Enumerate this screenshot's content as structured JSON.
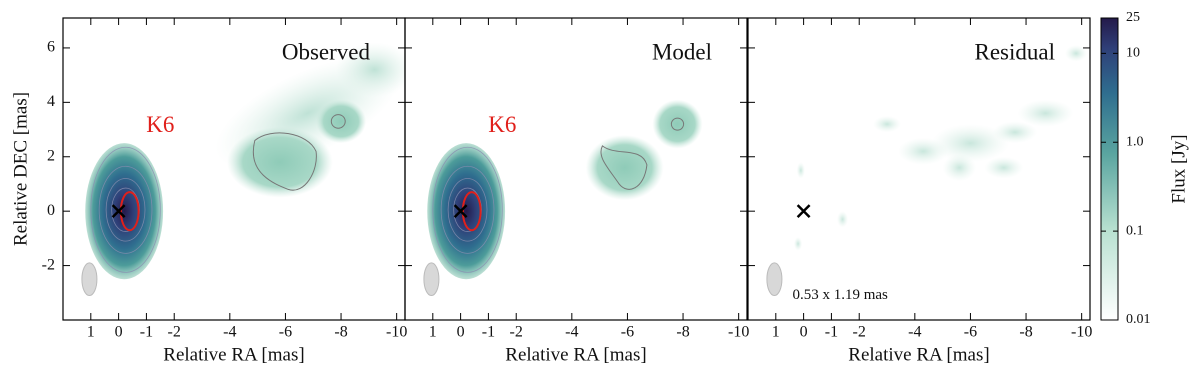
{
  "chart_data": [
    {
      "type": "image",
      "title": "Observed",
      "annotation": "K6",
      "xlabel": "Relative RA [mas]",
      "ylabel": "Relative DEC [mas]",
      "xlim": [
        2,
        -10.3
      ],
      "xticks": [
        1,
        0,
        -1,
        -2,
        -4,
        -6,
        -8,
        -10
      ],
      "ylim": [
        -4,
        7.1
      ],
      "yticks": [
        -2,
        0,
        2,
        4,
        6
      ]
    },
    {
      "type": "image",
      "title": "Model",
      "annotation": "K6",
      "xlabel": "Relative RA [mas]",
      "xlim": [
        2,
        -10.3
      ],
      "xticks": [
        1,
        0,
        -1,
        -2,
        -4,
        -6,
        -8,
        -10
      ],
      "ylim": [
        -4,
        7.1
      ]
    },
    {
      "type": "image",
      "title": "Residual",
      "annotation": "0.53 x 1.19 mas",
      "xlabel": "Relative RA [mas]",
      "xlim": [
        2,
        -10.3
      ],
      "xticks": [
        1,
        0,
        -1,
        -2,
        -4,
        -6,
        -8,
        -10
      ],
      "ylim": [
        -4,
        7.1
      ]
    }
  ],
  "colorbar": {
    "label": "Flux [Jy]",
    "scale": "log",
    "lim": [
      0.01,
      25
    ],
    "ticks": [
      0.01,
      0.1,
      {
        "value": 1,
        "label": "1.0"
      },
      10,
      25
    ]
  }
}
